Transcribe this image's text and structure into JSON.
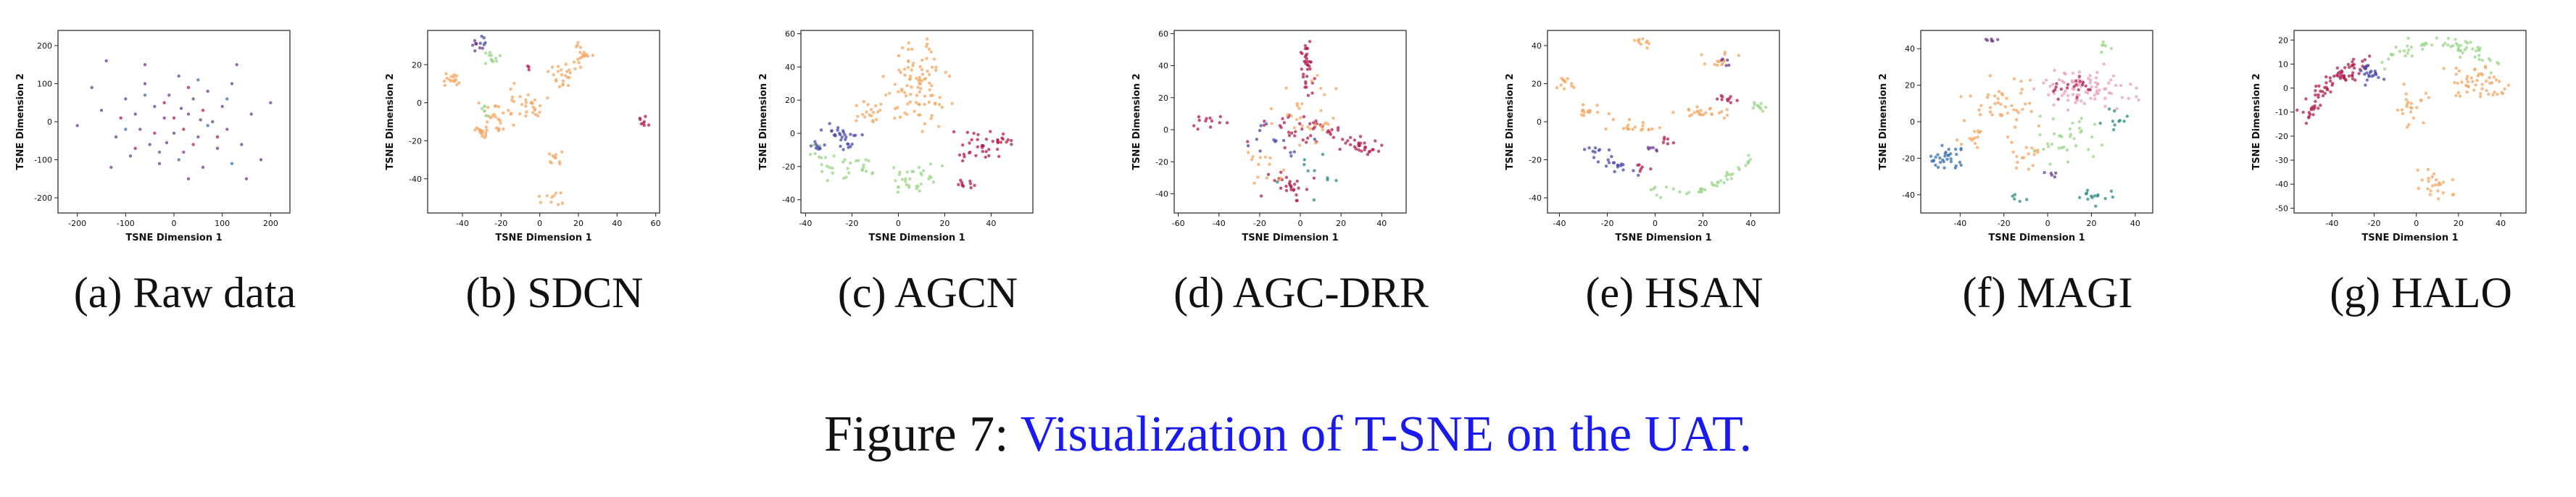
{
  "caption": {
    "prefix": "Figure 7: ",
    "text": "Visualization of T-SNE on the UAT."
  },
  "colors": {
    "caption_link": "#1a1aee",
    "palette": [
      "#f4a661",
      "#9bd58a",
      "#4a4aa8",
      "#b01e4a",
      "#6a3d8f",
      "#2c8a84",
      "#3a6fa8",
      "#c8a0d8"
    ]
  },
  "chart_data": [
    {
      "type": "scatter",
      "caption": "(a) Raw data",
      "xlabel": "TSNE Dimension 1",
      "ylabel": "TSNE Dimension 2",
      "xticks": [
        -200,
        -100,
        0,
        100,
        200
      ],
      "yticks": [
        -200,
        -100,
        0,
        100,
        200
      ],
      "xlim": [
        -240,
        240
      ],
      "ylim": [
        -240,
        240
      ],
      "series": [
        {
          "color": "#6a3d8f",
          "points": [
            [
              -170,
              90
            ],
            [
              -150,
              30
            ],
            [
              -120,
              -40
            ],
            [
              -100,
              60
            ],
            [
              -90,
              -90
            ],
            [
              -80,
              20
            ],
            [
              -70,
              -20
            ],
            [
              -60,
              100
            ],
            [
              -50,
              -60
            ],
            [
              -40,
              40
            ],
            [
              -30,
              -110
            ],
            [
              -20,
              10
            ],
            [
              -10,
              70
            ],
            [
              0,
              -30
            ],
            [
              10,
              120
            ],
            [
              20,
              -80
            ],
            [
              30,
              20
            ],
            [
              40,
              60
            ],
            [
              50,
              -40
            ],
            [
              60,
              -120
            ],
            [
              70,
              80
            ],
            [
              80,
              0
            ],
            [
              90,
              -70
            ],
            [
              100,
              40
            ],
            [
              110,
              -20
            ],
            [
              120,
              100
            ],
            [
              140,
              -60
            ],
            [
              160,
              20
            ],
            [
              180,
              -100
            ],
            [
              -130,
              -120
            ],
            [
              -60,
              150
            ],
            [
              30,
              -150
            ],
            [
              130,
              150
            ],
            [
              -200,
              -10
            ],
            [
              200,
              50
            ],
            [
              -140,
              160
            ],
            [
              150,
              -150
            ],
            [
              -15,
              -55
            ],
            [
              15,
              35
            ],
            [
              55,
              5
            ]
          ]
        },
        {
          "color": "#b01e4a",
          "points": [
            [
              -80,
              -70
            ],
            [
              -40,
              -30
            ],
            [
              0,
              10
            ],
            [
              40,
              -60
            ],
            [
              60,
              30
            ],
            [
              20,
              -20
            ],
            [
              -20,
              50
            ],
            [
              90,
              -40
            ],
            [
              -110,
              10
            ],
            [
              30,
              90
            ]
          ]
        },
        {
          "color": "#3a6fa8",
          "points": [
            [
              -100,
              -20
            ],
            [
              -60,
              70
            ],
            [
              10,
              -100
            ],
            [
              70,
              -10
            ],
            [
              110,
              60
            ],
            [
              -30,
              -80
            ],
            [
              50,
              110
            ],
            [
              120,
              -110
            ]
          ]
        }
      ]
    },
    {
      "type": "scatter",
      "caption": "(b) SDCN",
      "xlabel": "TSNE Dimension 1",
      "ylabel": "TSNE Dimension 2",
      "xticks": [
        -40,
        -20,
        0,
        20,
        40,
        60
      ],
      "yticks": [
        -40,
        -20,
        0,
        20
      ],
      "xlim": [
        -58,
        62
      ],
      "ylim": [
        -58,
        38
      ],
      "series": [
        {
          "color": "#f4a661",
          "clusters": [
            [
              -45,
              12,
              5,
              3,
              16
            ],
            [
              -25,
              -10,
              8,
              8,
              30
            ],
            [
              -8,
              -2,
              8,
              10,
              30
            ],
            [
              12,
              14,
              6,
              6,
              22
            ],
            [
              22,
              25,
              5,
              5,
              18
            ],
            [
              8,
              -30,
              4,
              4,
              10
            ],
            [
              6,
              -50,
              5,
              3,
              10
            ],
            [
              -30,
              -15,
              3,
              3,
              8
            ]
          ]
        },
        {
          "color": "#9bd58a",
          "clusters": [
            [
              -25,
              24,
              5,
              4,
              12
            ],
            [
              -28,
              -4,
              3,
              3,
              6
            ]
          ]
        },
        {
          "color": "#6a3d8f",
          "clusters": [
            [
              -33,
              30,
              3,
              3,
              8
            ]
          ]
        },
        {
          "color": "#4a4aa8",
          "clusters": [
            [
              -30,
              33,
              3,
              2,
              5
            ]
          ]
        },
        {
          "color": "#b01e4a",
          "clusters": [
            [
              54,
              -10,
              2,
              4,
              8
            ],
            [
              -5,
              18,
              2,
              2,
              3
            ]
          ]
        }
      ]
    },
    {
      "type": "scatter",
      "caption": "(c) AGCN",
      "xlabel": "TSNE Dimension 1",
      "ylabel": "TSNE Dimension 2",
      "xticks": [
        -40,
        -20,
        0,
        20,
        40
      ],
      "yticks": [
        -40,
        -20,
        0,
        20,
        40,
        60
      ],
      "xlim": [
        -42,
        58
      ],
      "ylim": [
        -48,
        62
      ],
      "series": [
        {
          "color": "#f4a661",
          "clusters": [
            [
              8,
              28,
              12,
              22,
              95
            ],
            [
              -14,
              12,
              6,
              6,
              18
            ]
          ]
        },
        {
          "color": "#9bd58a",
          "clusters": [
            [
              -22,
              -20,
              10,
              6,
              26
            ],
            [
              6,
              -26,
              10,
              10,
              32
            ],
            [
              -35,
              -12,
              3,
              5,
              8
            ]
          ]
        },
        {
          "color": "#4a4aa8",
          "clusters": [
            [
              -24,
              -2,
              8,
              8,
              30
            ],
            [
              -35,
              -6,
              3,
              4,
              8
            ]
          ]
        },
        {
          "color": "#b01e4a",
          "clusters": [
            [
              35,
              -8,
              12,
              8,
              32
            ],
            [
              30,
              -30,
              5,
              3,
              10
            ],
            [
              46,
              -4,
              4,
              3,
              10
            ]
          ]
        }
      ]
    },
    {
      "type": "scatter",
      "caption": "(d) AGC-DRR",
      "xlabel": "TSNE Dimension 1",
      "ylabel": "TSNE Dimension 2",
      "xticks": [
        -60,
        -40,
        -20,
        0,
        20,
        40
      ],
      "yticks": [
        -40,
        -20,
        0,
        20,
        40,
        60
      ],
      "xlim": [
        -62,
        52
      ],
      "ylim": [
        -52,
        62
      ],
      "series": [
        {
          "color": "#b01e4a",
          "clusters": [
            [
              3,
              38,
              3,
              14,
              34
            ],
            [
              0,
              0,
              18,
              8,
              40
            ],
            [
              30,
              -10,
              12,
              5,
              28
            ],
            [
              -5,
              -35,
              10,
              8,
              26
            ],
            [
              -45,
              5,
              8,
              4,
              12
            ]
          ]
        },
        {
          "color": "#f4a661",
          "clusters": [
            [
              2,
              10,
              14,
              18,
              30
            ],
            [
              -20,
              -20,
              10,
              10,
              14
            ]
          ]
        },
        {
          "color": "#4a4aa8",
          "clusters": [
            [
              -10,
              -5,
              14,
              12,
              14
            ]
          ]
        },
        {
          "color": "#2c8a84",
          "clusters": [
            [
              5,
              -25,
              12,
              12,
              10
            ]
          ]
        }
      ]
    },
    {
      "type": "scatter",
      "caption": "(e) HSAN",
      "xlabel": "TSNE Dimension 1",
      "ylabel": "TSNE Dimension 2",
      "xticks": [
        -40,
        -20,
        0,
        20,
        40
      ],
      "yticks": [
        -40,
        -20,
        0,
        20,
        40
      ],
      "xlim": [
        -45,
        52
      ],
      "ylim": [
        -48,
        48
      ],
      "series": [
        {
          "color": "#f4a661",
          "clusters": [
            [
              -38,
              20,
              4,
              3,
              12
            ],
            [
              -28,
              5,
              6,
              4,
              14
            ],
            [
              -10,
              -2,
              10,
              4,
              18
            ],
            [
              -5,
              42,
              3,
              3,
              10
            ],
            [
              22,
              5,
              10,
              3,
              24
            ],
            [
              25,
              32,
              8,
              4,
              14
            ]
          ]
        },
        {
          "color": "#9bd58a",
          "arc": [
            [
              -2,
              -36
            ],
            [
              15,
              -38
            ],
            [
              30,
              -30
            ],
            [
              42,
              -18
            ]
          ],
          "n": 40,
          "spread": 2.5
        },
        {
          "color": "#9bd58a",
          "clusters": [
            [
              42,
              8,
              4,
              2,
              10
            ]
          ]
        },
        {
          "color": "#4a4aa8",
          "arc": [
            [
              -28,
              -12
            ],
            [
              -18,
              -22
            ],
            [
              -8,
              -28
            ]
          ],
          "n": 26,
          "spread": 2.5
        },
        {
          "color": "#b01e4a",
          "clusters": [
            [
              -5,
              -25,
              3,
              2,
              6
            ],
            [
              30,
              12,
              5,
              2,
              10
            ],
            [
              5,
              -10,
              3,
              3,
              6
            ]
          ]
        },
        {
          "color": "#6a3d8f",
          "clusters": [
            [
              0,
              -15,
              3,
              2,
              6
            ],
            [
              28,
              32,
              3,
              2,
              5
            ]
          ]
        }
      ]
    },
    {
      "type": "scatter",
      "caption": "(f) MAGI",
      "xlabel": "TSNE Dimension 1",
      "ylabel": "TSNE Dimension 2",
      "xticks": [
        -40,
        -20,
        0,
        20,
        40
      ],
      "yticks": [
        -40,
        -20,
        0,
        20,
        40
      ],
      "xlim": [
        -58,
        48
      ],
      "ylim": [
        -50,
        50
      ],
      "series": [
        {
          "color": "#f4a661",
          "clusters": [
            [
              -22,
              10,
              12,
              14,
              44
            ],
            [
              -10,
              -20,
              6,
              6,
              16
            ],
            [
              -35,
              -8,
              5,
              5,
              12
            ]
          ]
        },
        {
          "color": "#3a6fa8",
          "clusters": [
            [
              -45,
              -20,
              8,
              6,
              32
            ]
          ]
        },
        {
          "color": "#e8a0b8",
          "clusters": [
            [
              18,
              18,
              18,
              10,
              80
            ]
          ]
        },
        {
          "color": "#b01e4a",
          "clusters": [
            [
              15,
              20,
              10,
              6,
              20
            ]
          ]
        },
        {
          "color": "#9bd58a",
          "clusters": [
            [
              10,
              -10,
              14,
              10,
              34
            ],
            [
              28,
              40,
              4,
              3,
              6
            ]
          ]
        },
        {
          "color": "#2c8a84",
          "clusters": [
            [
              22,
              -40,
              8,
              4,
              14
            ],
            [
              30,
              0,
              5,
              5,
              10
            ],
            [
              -15,
              -42,
              4,
              2,
              5
            ]
          ]
        },
        {
          "color": "#6a3d8f",
          "clusters": [
            [
              -26,
              44,
              3,
              2,
              6
            ],
            [
              2,
              -30,
              3,
              3,
              5
            ]
          ]
        }
      ]
    },
    {
      "type": "scatter",
      "caption": "(g) HALO",
      "xlabel": "TSNE Dimension 1",
      "ylabel": "TSNE Dimension 2",
      "xticks": [
        -40,
        -20,
        0,
        20,
        40
      ],
      "yticks": [
        -50,
        -40,
        -30,
        -20,
        -10,
        0,
        10,
        20
      ],
      "xlim": [
        -58,
        52
      ],
      "ylim": [
        -52,
        24
      ],
      "series": [
        {
          "color": "#b01e4a",
          "arc": [
            [
              -55,
              -12
            ],
            [
              -45,
              -2
            ],
            [
              -35,
              6
            ],
            [
              -25,
              10
            ]
          ],
          "n": 80,
          "spread": 3.5
        },
        {
          "color": "#4a4aa8",
          "clusters": [
            [
              -22,
              6,
              5,
              4,
              22
            ]
          ]
        },
        {
          "color": "#9bd58a",
          "arc": [
            [
              -18,
              8
            ],
            [
              -5,
              18
            ],
            [
              10,
              20
            ],
            [
              25,
              16
            ],
            [
              38,
              8
            ]
          ],
          "n": 60,
          "spread": 3.5
        },
        {
          "color": "#f4a661",
          "clusters": [
            [
              30,
              2,
              12,
              6,
              50
            ],
            [
              8,
              -40,
              7,
              5,
              24
            ],
            [
              -2,
              -8,
              6,
              8,
              22
            ]
          ]
        }
      ]
    }
  ]
}
